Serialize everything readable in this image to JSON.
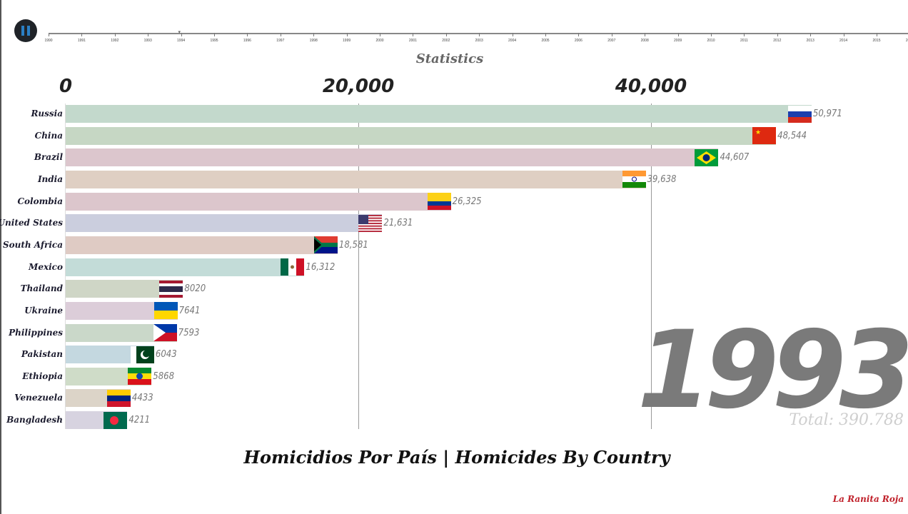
{
  "player": {
    "pause_icon": "pause-icon"
  },
  "timeline": {
    "years": [
      "1990",
      "1991",
      "1992",
      "1993",
      "1994",
      "1995",
      "1996",
      "1997",
      "1998",
      "1999",
      "2000",
      "2001",
      "2002",
      "2003",
      "2004",
      "2005",
      "2006",
      "2007",
      "2008",
      "2009",
      "2010",
      "2011",
      "2012",
      "2013",
      "2014",
      "2015",
      "2016"
    ],
    "current_position": 1993.95
  },
  "chart_data": {
    "type": "bar",
    "orientation": "horizontal",
    "subtitle": "Statistics",
    "title": "Homicidios Por País | Homicides By Country",
    "xlim": [
      0,
      51500
    ],
    "ticks": [
      {
        "value": 0,
        "label": "0"
      },
      {
        "value": 20000,
        "label": "20,000"
      },
      {
        "value": 40000,
        "label": "40,000"
      }
    ],
    "grid": true,
    "categories": [
      "Russia",
      "China",
      "Brazil",
      "India",
      "Colombia",
      "United States",
      "South Africa",
      "Mexico",
      "Thailand",
      "Ukraine",
      "Philippines",
      "Pakistan",
      "Ethiopia",
      "Venezuela",
      "Bangladesh"
    ],
    "values": [
      50971,
      48544,
      44607,
      39638,
      26325,
      21631,
      18581,
      16312,
      8020,
      7641,
      7593,
      6043,
      5868,
      4433,
      4211
    ],
    "value_labels": [
      "50,971",
      "48,544",
      "44,607",
      "39,638",
      "26,325",
      "21,631",
      "18,581",
      "16,312",
      "8020",
      "7641",
      "7593",
      "6043",
      "5868",
      "4433",
      "4211"
    ],
    "colors": [
      "#c3d9cc",
      "#c6d7c4",
      "#dcc6cd",
      "#dfcfc3",
      "#dcc6cc",
      "#cbcede",
      "#dfcbc4",
      "#c3dcd8",
      "#cfd6c6",
      "#dccdd9",
      "#cad8c9",
      "#c4d8e0",
      "#cfdcc8",
      "#dcd4c8",
      "#d7d3e0"
    ],
    "flags": [
      "russia-flag-icon",
      "china-flag-icon",
      "brazil-flag-icon",
      "india-flag-icon",
      "colombia-flag-icon",
      "usa-flag-icon",
      "south-africa-flag-icon",
      "mexico-flag-icon",
      "thailand-flag-icon",
      "ukraine-flag-icon",
      "philippines-flag-icon",
      "pakistan-flag-icon",
      "ethiopia-flag-icon",
      "venezuela-flag-icon",
      "bangladesh-flag-icon"
    ],
    "year": "1993",
    "total": "Total: 390.788"
  },
  "branding": {
    "logo": "La Ranita Roja"
  }
}
